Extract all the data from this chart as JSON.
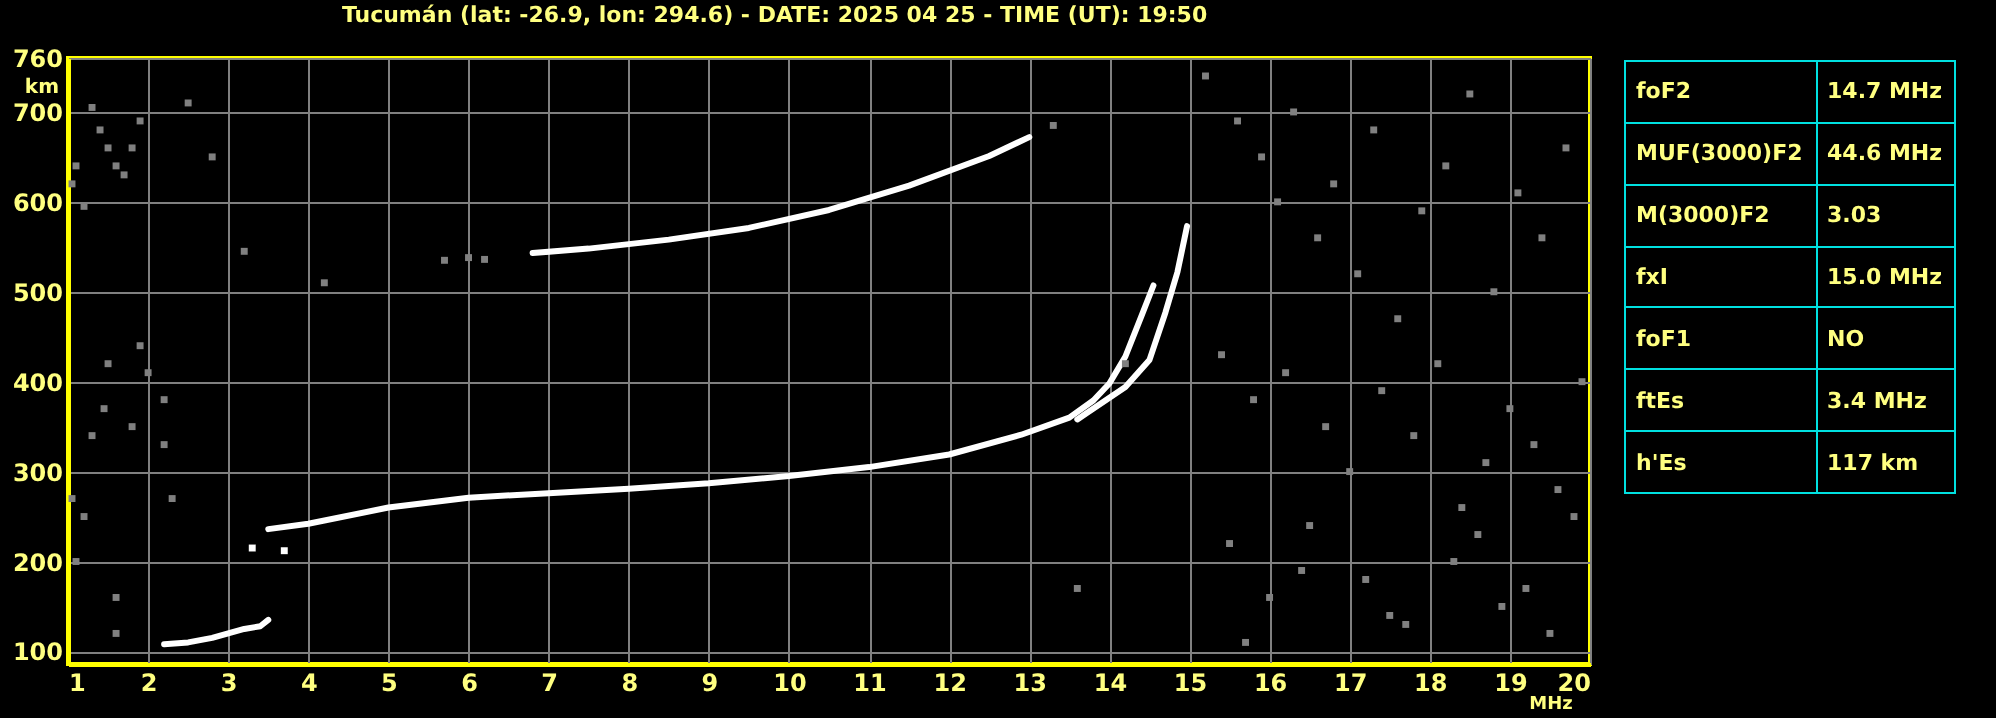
{
  "chart_data": [
    {
      "type": "line",
      "title": "Tucumán (lat: -26.9, lon: 294.6) - DATE: 2025 04 25 - TIME (UT): 19:50",
      "xlabel": "MHz",
      "ylabel": "km",
      "xlim": [
        1,
        20
      ],
      "ylim": [
        86,
        760
      ],
      "xticks": [
        1,
        2,
        3,
        4,
        5,
        6,
        7,
        8,
        9,
        10,
        11,
        12,
        13,
        14,
        15,
        16,
        17,
        18,
        19,
        20
      ],
      "yticks": [
        100,
        200,
        300,
        400,
        500,
        600,
        700,
        760
      ],
      "grid": true,
      "marker": "none",
      "line_style": "solid",
      "series": [
        {
          "color": "#ffffff",
          "x": [
            2.2,
            2.5,
            2.8,
            3.0,
            3.2,
            3.4,
            3.5
          ],
          "values": [
            108,
            110,
            115,
            120,
            125,
            128,
            135
          ]
        },
        {
          "color": "#ffffff",
          "x": [
            3.5,
            4,
            5,
            6,
            7,
            8,
            9,
            10,
            11,
            12,
            12.9,
            13.5,
            13.8,
            14.0,
            14.2,
            14.4,
            14.55
          ],
          "values": [
            236,
            242,
            260,
            271,
            276,
            281,
            287,
            295,
            305,
            319,
            341,
            360,
            379,
            398,
            428,
            473,
            507
          ]
        },
        {
          "color": "#ffffff",
          "x": [
            13.6,
            13.7,
            14.2,
            14.5,
            14.7,
            14.85,
            14.97
          ],
          "values": [
            358,
            364,
            394,
            424,
            477,
            522,
            573
          ]
        },
        {
          "color": "#ffffff",
          "x": [
            6.8,
            7.5,
            8.5,
            9.5,
            10.5,
            11.5,
            12.5,
            13.0
          ],
          "values": [
            543,
            548,
            558,
            571,
            591,
            618,
            651,
            672
          ]
        },
        {
          "type": "scatter",
          "marker": "square",
          "color": "#808080",
          "x": [
            5.7,
            6.0,
            6.2,
            13.3,
            1.05,
            1.1,
            1.2,
            1.3,
            1.4,
            1.5,
            1.6,
            1.7,
            1.8,
            1.9,
            1.05,
            1.1,
            1.2,
            1.3,
            1.45,
            1.5,
            1.8,
            1.9,
            2.0,
            2.2,
            2.2,
            2.3,
            1.6,
            1.6,
            2.5,
            2.8,
            4.2,
            3.2,
            15.2,
            15.6,
            15.9,
            16.1,
            16.3,
            16.6,
            16.8,
            17.1,
            17.3,
            17.6,
            17.9,
            18.2,
            18.5,
            18.8,
            19.1,
            19.4,
            19.7,
            15.4,
            15.8,
            16.2,
            16.7,
            17.0,
            17.4,
            17.8,
            18.1,
            18.4,
            18.7,
            19.0,
            19.3,
            19.6,
            19.9,
            15.5,
            16.0,
            16.5,
            17.2,
            17.7,
            18.3,
            18.9,
            19.5,
            15.7,
            16.4,
            17.5,
            18.6,
            19.2,
            19.8,
            14.2,
            13.6
          ],
          "values": [
            535,
            538,
            536,
            685,
            620,
            640,
            595,
            705,
            680,
            660,
            640,
            630,
            660,
            690,
            270,
            200,
            250,
            340,
            370,
            420,
            350,
            440,
            410,
            380,
            330,
            270,
            160,
            120,
            710,
            650,
            510,
            545,
            740,
            690,
            650,
            600,
            700,
            560,
            620,
            520,
            680,
            470,
            590,
            640,
            720,
            500,
            610,
            560,
            660,
            430,
            380,
            410,
            350,
            300,
            390,
            340,
            420,
            260,
            310,
            370,
            330,
            280,
            400,
            220,
            160,
            240,
            180,
            130,
            200,
            150,
            120,
            110,
            190,
            140,
            230,
            170,
            250,
            420,
            170
          ]
        },
        {
          "type": "scatter",
          "marker": "square",
          "color": "#ffffff",
          "x": [
            3.3,
            3.7
          ],
          "values": [
            215,
            212
          ]
        }
      ]
    },
    {
      "type": "other",
      "annotations": [
        "foF2",
        "14.7 MHz",
        "MUF(3000)F2",
        "44.6 MHz",
        "M(3000)F2",
        "3.03",
        "fxI",
        "15.0 MHz",
        "foF1",
        "NO",
        "ftEs",
        "3.4 MHz",
        "h'Es",
        "117 km"
      ]
    }
  ]
}
